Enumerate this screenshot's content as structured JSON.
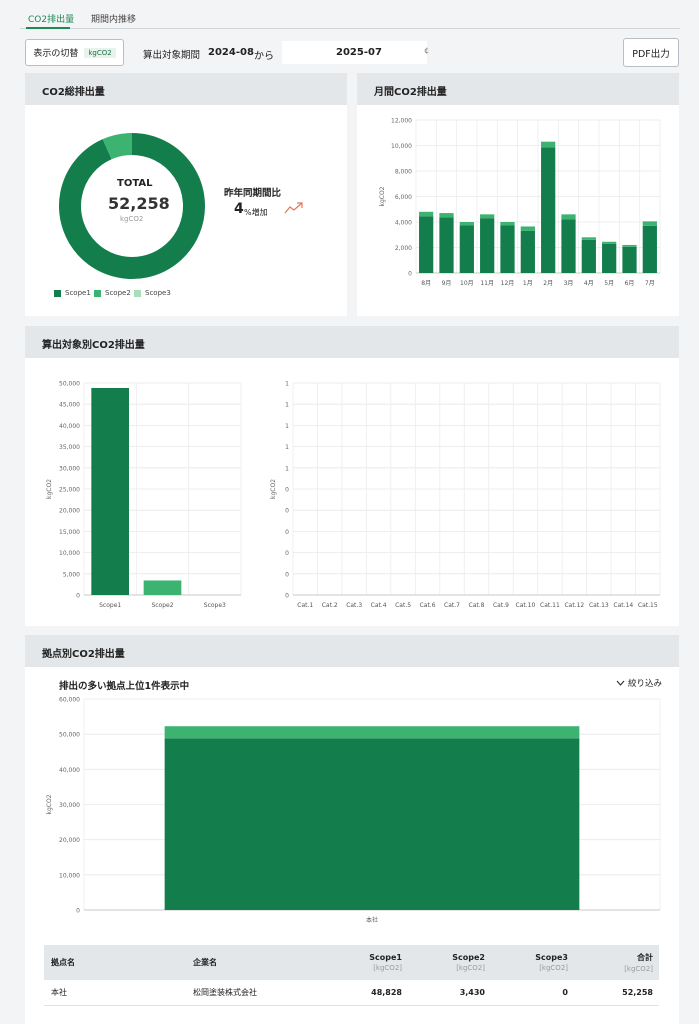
{
  "tabs": [
    {
      "label": "CO2排出量",
      "active": true
    },
    {
      "label": "期間内推移",
      "active": false
    }
  ],
  "toolbar": {
    "toggle_label": "表示の切替",
    "toggle_unit": "kgCO2",
    "period_label": "算出対象期間",
    "period_start": "2024-08",
    "period_from": "から",
    "period_end": "2025-07",
    "pdf_label": "PDF出力"
  },
  "total_card": {
    "title": "CO2総排出量",
    "total_label": "TOTAL",
    "total_value": "52,258",
    "total_unit": "kgCO2",
    "yoy_label": "昨年同期間比",
    "yoy_value": "4",
    "yoy_suffix": "%増加",
    "trend_icon": "trend-up-icon",
    "legend": [
      "Scope1",
      "Scope2",
      "Scope3"
    ]
  },
  "monthly_card": {
    "title": "月間CO2排出量"
  },
  "target_card": {
    "title": "算出対象別CO2排出量"
  },
  "site_card": {
    "title": "拠点別CO2排出量",
    "subtitle": "排出の多い拠点上位1件表示中",
    "filter_label": "絞り込み"
  },
  "colors": {
    "scope1": "#137e4c",
    "scope2": "#3cb371",
    "scope3": "#a8dfb9",
    "accent": "#1d8a53"
  },
  "chart_data": [
    {
      "type": "pie",
      "title": "",
      "categories": [
        "Scope1",
        "Scope2",
        "Scope3"
      ],
      "values": [
        48828,
        3430,
        0
      ]
    },
    {
      "type": "bar",
      "stacked": true,
      "title": "",
      "ylabel": "kgCO2",
      "ylim": [
        0,
        12000
      ],
      "yticks": [
        "0",
        "2,000",
        "4,000",
        "6,000",
        "8,000",
        "10,000",
        "12,000"
      ],
      "categories": [
        "8月",
        "9月",
        "10月",
        "11月",
        "12月",
        "1月",
        "2月",
        "3月",
        "4月",
        "5月",
        "6月",
        "7月"
      ],
      "series": [
        {
          "name": "Scope1",
          "values": [
            4450,
            4350,
            3750,
            4300,
            3750,
            3300,
            9850,
            4200,
            2600,
            2300,
            2050,
            3700
          ]
        },
        {
          "name": "Scope2",
          "values": [
            350,
            350,
            250,
            300,
            250,
            350,
            450,
            400,
            200,
            150,
            150,
            350
          ]
        }
      ]
    },
    {
      "type": "bar",
      "stacked": true,
      "title": "",
      "ylabel": "kgCO2",
      "ylim": [
        0,
        50000
      ],
      "yticks": [
        "0",
        "5,000",
        "10,000",
        "15,000",
        "20,000",
        "25,000",
        "30,000",
        "35,000",
        "40,000",
        "45,000",
        "50,000"
      ],
      "categories": [
        "Scope1",
        "Scope2",
        "Scope3"
      ],
      "series": [
        {
          "name": "Scope1",
          "values": [
            48828,
            0,
            0
          ]
        },
        {
          "name": "Scope2",
          "values": [
            0,
            3430,
            0
          ]
        },
        {
          "name": "Scope3",
          "values": [
            0,
            0,
            0
          ]
        }
      ]
    },
    {
      "type": "bar",
      "title": "",
      "ylabel": "kgCO2",
      "yticks": [
        "0",
        "0",
        "0",
        "0",
        "0",
        "0",
        "1",
        "1",
        "1",
        "1",
        "1"
      ],
      "categories": [
        "Cat.1",
        "Cat.2",
        "Cat.3",
        "Cat.4",
        "Cat.5",
        "Cat.6",
        "Cat.7",
        "Cat.8",
        "Cat.9",
        "Cat.10",
        "Cat.11",
        "Cat.12",
        "Cat.13",
        "Cat.14",
        "Cat.15"
      ],
      "values": [
        0,
        0,
        0,
        0,
        0,
        0,
        0,
        0,
        0,
        0,
        0,
        0,
        0,
        0,
        0
      ]
    },
    {
      "type": "bar",
      "stacked": true,
      "title": "",
      "ylabel": "kgCO2",
      "ylim": [
        0,
        60000
      ],
      "yticks": [
        "0",
        "10,000",
        "20,000",
        "30,000",
        "40,000",
        "50,000",
        "60,000"
      ],
      "categories": [
        "本社"
      ],
      "series": [
        {
          "name": "Scope1",
          "values": [
            48828
          ]
        },
        {
          "name": "Scope2",
          "values": [
            3430
          ]
        }
      ]
    }
  ],
  "site_table": {
    "headers": [
      {
        "label": "拠点名",
        "unit": ""
      },
      {
        "label": "企業名",
        "unit": ""
      },
      {
        "label": "Scope1",
        "unit": "[kgCO2]"
      },
      {
        "label": "Scope2",
        "unit": "[kgCO2]"
      },
      {
        "label": "Scope3",
        "unit": "[kgCO2]"
      },
      {
        "label": "合計",
        "unit": "[kgCO2]"
      }
    ],
    "rows": [
      [
        "本社",
        "松岡塗装株式会社",
        "48,828",
        "3,430",
        "0",
        "52,258"
      ]
    ]
  }
}
